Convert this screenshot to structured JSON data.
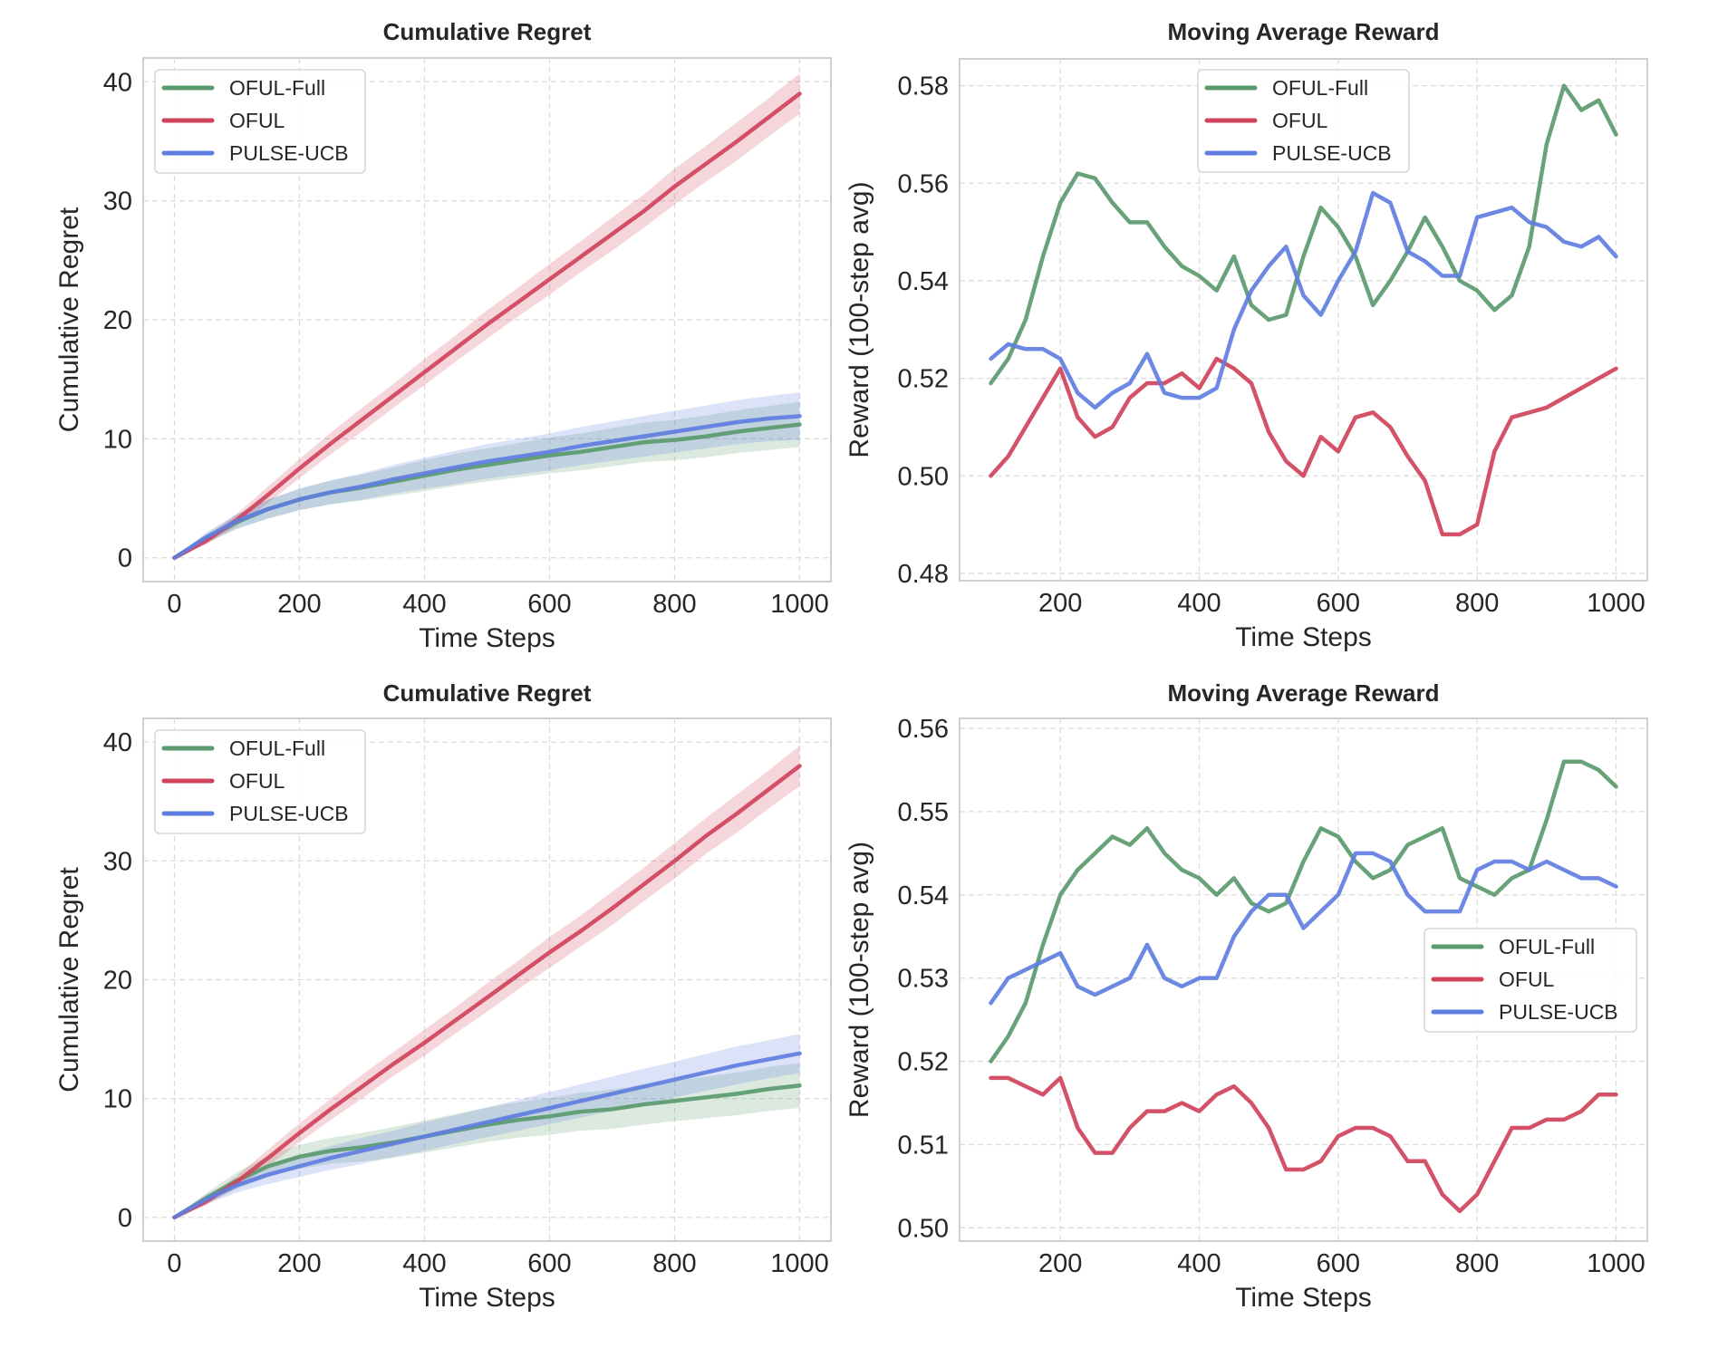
{
  "figure": {
    "colors": {
      "OFUL-Full": "#5a9a6e",
      "OFUL": "#d0435b",
      "PULSE-UCB": "#5f7ee0"
    }
  },
  "chart_data": [
    {
      "id": "top-left",
      "type": "line",
      "title": "Cumulative Regret",
      "xlabel": "Time Steps",
      "ylabel": "Cumulative Regret",
      "xlim": [
        -50,
        1050
      ],
      "ylim": [
        -2,
        42
      ],
      "xticks": [
        0,
        200,
        400,
        600,
        800,
        1000
      ],
      "xtick_labels": [
        "0",
        "200",
        "400",
        "600",
        "800",
        "1000"
      ],
      "yticks": [
        0,
        10,
        20,
        30,
        40
      ],
      "ytick_labels": [
        "0",
        "10",
        "20",
        "30",
        "40"
      ],
      "grid": true,
      "legend": {
        "placement": "upper-left",
        "entries": [
          "OFUL-Full",
          "OFUL",
          "PULSE-UCB"
        ]
      },
      "x": [
        0,
        50,
        100,
        150,
        200,
        250,
        300,
        350,
        400,
        450,
        500,
        550,
        600,
        650,
        700,
        750,
        800,
        850,
        900,
        950,
        1000
      ],
      "series": [
        {
          "name": "OFUL-Full",
          "values": [
            0,
            1.6,
            3.0,
            4.1,
            4.9,
            5.5,
            5.9,
            6.4,
            6.9,
            7.4,
            7.8,
            8.2,
            8.6,
            8.9,
            9.3,
            9.7,
            9.9,
            10.2,
            10.6,
            10.9,
            11.2
          ],
          "band": [
            0,
            0.4,
            0.6,
            0.8,
            0.9,
            1.0,
            1.1,
            1.2,
            1.3,
            1.35,
            1.4,
            1.45,
            1.5,
            1.55,
            1.6,
            1.65,
            1.7,
            1.75,
            1.8,
            1.85,
            1.9
          ]
        },
        {
          "name": "OFUL",
          "values": [
            0,
            1.4,
            3.2,
            5.3,
            7.5,
            9.6,
            11.6,
            13.6,
            15.6,
            17.6,
            19.6,
            21.5,
            23.4,
            25.3,
            27.2,
            29.1,
            31.2,
            33.1,
            35.0,
            37.0,
            39.0
          ],
          "band": [
            0,
            0.3,
            0.5,
            0.7,
            0.8,
            0.9,
            1.0,
            1.0,
            1.1,
            1.1,
            1.2,
            1.2,
            1.3,
            1.3,
            1.4,
            1.4,
            1.5,
            1.5,
            1.6,
            1.6,
            1.7
          ]
        },
        {
          "name": "PULSE-UCB",
          "values": [
            0,
            1.7,
            3.1,
            4.1,
            4.9,
            5.5,
            6.0,
            6.6,
            7.1,
            7.6,
            8.1,
            8.5,
            8.9,
            9.4,
            9.8,
            10.2,
            10.6,
            11.0,
            11.4,
            11.7,
            11.9
          ],
          "band": [
            0,
            0.4,
            0.6,
            0.8,
            0.9,
            1.0,
            1.1,
            1.2,
            1.3,
            1.4,
            1.45,
            1.5,
            1.55,
            1.6,
            1.65,
            1.7,
            1.75,
            1.8,
            1.85,
            1.9,
            2.0
          ]
        }
      ]
    },
    {
      "id": "top-right",
      "type": "line",
      "title": "Moving Average Reward",
      "xlabel": "Time Steps",
      "ylabel": "Reward (100-step avg)",
      "xlim": [
        55,
        1045
      ],
      "ylim": [
        0.4785,
        0.5855
      ],
      "xticks": [
        200,
        400,
        600,
        800,
        1000
      ],
      "xtick_labels": [
        "200",
        "400",
        "600",
        "800",
        "1000"
      ],
      "yticks": [
        0.48,
        0.5,
        0.52,
        0.54,
        0.56,
        0.58
      ],
      "ytick_labels": [
        "0.48",
        "0.50",
        "0.52",
        "0.54",
        "0.56",
        "0.58"
      ],
      "grid": true,
      "legend": {
        "placement": "upper-center",
        "entries": [
          "OFUL-Full",
          "OFUL",
          "PULSE-UCB"
        ]
      },
      "x": [
        100,
        125,
        150,
        175,
        200,
        225,
        250,
        275,
        300,
        325,
        350,
        375,
        400,
        425,
        450,
        475,
        500,
        525,
        550,
        575,
        600,
        625,
        650,
        675,
        700,
        725,
        750,
        775,
        800,
        825,
        850,
        875,
        900,
        925,
        950,
        975,
        1000
      ],
      "series": [
        {
          "name": "OFUL-Full",
          "values": [
            0.519,
            0.524,
            0.532,
            0.545,
            0.556,
            0.562,
            0.561,
            0.556,
            0.552,
            0.552,
            0.547,
            0.543,
            0.541,
            0.538,
            0.545,
            0.535,
            0.532,
            0.533,
            0.545,
            0.555,
            0.551,
            0.545,
            0.535,
            0.54,
            0.546,
            0.553,
            0.547,
            0.54,
            0.538,
            0.534,
            0.537,
            0.547,
            0.568,
            0.58,
            0.575,
            0.577,
            0.57
          ]
        },
        {
          "name": "OFUL",
          "values": [
            0.5,
            0.504,
            0.51,
            0.516,
            0.522,
            0.512,
            0.508,
            0.51,
            0.516,
            0.519,
            0.519,
            0.521,
            0.518,
            0.524,
            0.522,
            0.519,
            0.509,
            0.503,
            0.5,
            0.508,
            0.505,
            0.512,
            0.513,
            0.51,
            0.504,
            0.499,
            0.488,
            0.488,
            0.49,
            0.505,
            0.512,
            0.513,
            0.514,
            0.516,
            0.518,
            0.52,
            0.522
          ]
        },
        {
          "name": "PULSE-UCB",
          "values": [
            0.524,
            0.527,
            0.526,
            0.526,
            0.524,
            0.517,
            0.514,
            0.517,
            0.519,
            0.525,
            0.517,
            0.516,
            0.516,
            0.518,
            0.53,
            0.538,
            0.543,
            0.547,
            0.537,
            0.533,
            0.54,
            0.546,
            0.558,
            0.556,
            0.546,
            0.544,
            0.541,
            0.541,
            0.553,
            0.554,
            0.555,
            0.552,
            0.551,
            0.548,
            0.547,
            0.549,
            0.545
          ]
        }
      ]
    },
    {
      "id": "bottom-left",
      "type": "line",
      "title": "Cumulative Regret",
      "xlabel": "Time Steps",
      "ylabel": "Cumulative Regret",
      "xlim": [
        -50,
        1050
      ],
      "ylim": [
        -2,
        42
      ],
      "xticks": [
        0,
        200,
        400,
        600,
        800,
        1000
      ],
      "xtick_labels": [
        "0",
        "200",
        "400",
        "600",
        "800",
        "1000"
      ],
      "yticks": [
        0,
        10,
        20,
        30,
        40
      ],
      "ytick_labels": [
        "0",
        "10",
        "20",
        "30",
        "40"
      ],
      "grid": true,
      "legend": {
        "placement": "upper-left",
        "entries": [
          "OFUL-Full",
          "OFUL",
          "PULSE-UCB"
        ]
      },
      "x": [
        0,
        50,
        100,
        150,
        200,
        250,
        300,
        350,
        400,
        450,
        500,
        550,
        600,
        650,
        700,
        750,
        800,
        850,
        900,
        950,
        1000
      ],
      "series": [
        {
          "name": "OFUL-Full",
          "values": [
            0,
            1.6,
            3.1,
            4.3,
            5.1,
            5.6,
            5.9,
            6.3,
            6.8,
            7.3,
            7.8,
            8.2,
            8.5,
            8.9,
            9.1,
            9.5,
            9.8,
            10.1,
            10.4,
            10.8,
            11.1
          ],
          "band": [
            0,
            0.4,
            0.7,
            0.9,
            1.0,
            1.1,
            1.2,
            1.3,
            1.35,
            1.4,
            1.45,
            1.5,
            1.55,
            1.6,
            1.65,
            1.7,
            1.7,
            1.75,
            1.8,
            1.85,
            1.9
          ]
        },
        {
          "name": "OFUL",
          "values": [
            0,
            1.3,
            3.0,
            5.0,
            7.1,
            9.1,
            11.0,
            12.9,
            14.7,
            16.6,
            18.5,
            20.4,
            22.3,
            24.1,
            26.0,
            28.0,
            30.0,
            32.1,
            34.0,
            36.0,
            38.0
          ],
          "band": [
            0,
            0.3,
            0.5,
            0.7,
            0.8,
            0.9,
            1.0,
            1.0,
            1.1,
            1.1,
            1.2,
            1.2,
            1.3,
            1.3,
            1.4,
            1.4,
            1.5,
            1.5,
            1.6,
            1.6,
            1.7
          ]
        },
        {
          "name": "PULSE-UCB",
          "values": [
            0,
            1.5,
            2.7,
            3.6,
            4.3,
            5.0,
            5.6,
            6.2,
            6.8,
            7.4,
            8.0,
            8.6,
            9.2,
            9.8,
            10.4,
            11.0,
            11.6,
            12.2,
            12.8,
            13.3,
            13.8
          ],
          "band": [
            0,
            0.4,
            0.6,
            0.8,
            0.9,
            1.0,
            1.1,
            1.1,
            1.2,
            1.2,
            1.25,
            1.3,
            1.35,
            1.4,
            1.45,
            1.5,
            1.5,
            1.55,
            1.6,
            1.6,
            1.65
          ]
        }
      ]
    },
    {
      "id": "bottom-right",
      "type": "line",
      "title": "Moving Average Reward",
      "xlabel": "Time Steps",
      "ylabel": "Reward (100-step avg)",
      "xlim": [
        55,
        1045
      ],
      "ylim": [
        0.4984,
        0.5612
      ],
      "xticks": [
        200,
        400,
        600,
        800,
        1000
      ],
      "xtick_labels": [
        "200",
        "400",
        "600",
        "800",
        "1000"
      ],
      "yticks": [
        0.5,
        0.51,
        0.52,
        0.53,
        0.54,
        0.55,
        0.56
      ],
      "ytick_labels": [
        "0.50",
        "0.51",
        "0.52",
        "0.53",
        "0.54",
        "0.55",
        "0.56"
      ],
      "grid": true,
      "legend": {
        "placement": "center-right",
        "entries": [
          "OFUL-Full",
          "OFUL",
          "PULSE-UCB"
        ]
      },
      "x": [
        100,
        125,
        150,
        175,
        200,
        225,
        250,
        275,
        300,
        325,
        350,
        375,
        400,
        425,
        450,
        475,
        500,
        525,
        550,
        575,
        600,
        625,
        650,
        675,
        700,
        725,
        750,
        775,
        800,
        825,
        850,
        875,
        900,
        925,
        950,
        975,
        1000
      ],
      "series": [
        {
          "name": "OFUL-Full",
          "values": [
            0.52,
            0.523,
            0.527,
            0.534,
            0.54,
            0.543,
            0.545,
            0.547,
            0.546,
            0.548,
            0.545,
            0.543,
            0.542,
            0.54,
            0.542,
            0.539,
            0.538,
            0.539,
            0.544,
            0.548,
            0.547,
            0.544,
            0.542,
            0.543,
            0.546,
            0.547,
            0.548,
            0.542,
            0.541,
            0.54,
            0.542,
            0.543,
            0.549,
            0.556,
            0.556,
            0.555,
            0.553
          ]
        },
        {
          "name": "OFUL",
          "values": [
            0.518,
            0.518,
            0.517,
            0.516,
            0.518,
            0.512,
            0.509,
            0.509,
            0.512,
            0.514,
            0.514,
            0.515,
            0.514,
            0.516,
            0.517,
            0.515,
            0.512,
            0.507,
            0.507,
            0.508,
            0.511,
            0.512,
            0.512,
            0.511,
            0.508,
            0.508,
            0.504,
            0.502,
            0.504,
            0.508,
            0.512,
            0.512,
            0.513,
            0.513,
            0.514,
            0.516,
            0.516
          ]
        },
        {
          "name": "PULSE-UCB",
          "values": [
            0.527,
            0.53,
            0.531,
            0.532,
            0.533,
            0.529,
            0.528,
            0.529,
            0.53,
            0.534,
            0.53,
            0.529,
            0.53,
            0.53,
            0.535,
            0.538,
            0.54,
            0.54,
            0.536,
            0.538,
            0.54,
            0.545,
            0.545,
            0.544,
            0.54,
            0.538,
            0.538,
            0.538,
            0.543,
            0.544,
            0.544,
            0.543,
            0.544,
            0.543,
            0.542,
            0.542,
            0.541
          ]
        }
      ]
    }
  ]
}
